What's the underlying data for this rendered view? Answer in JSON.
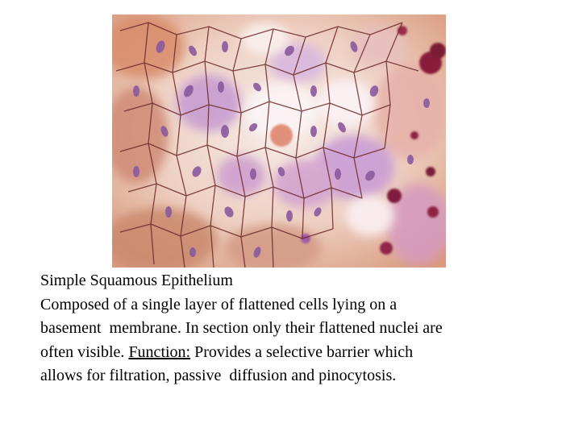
{
  "slide": {
    "title": "Simple Squamous Epithelium",
    "body_line_1": "Composed of a single layer of flattened cells lying on a",
    "body_line_2": "basement  membrane. In section only their flattened nuclei are",
    "body_line_3_pre": "often visible. ",
    "function_label": "Function:",
    "body_line_3_post": " Provides a selective barrier which",
    "body_line_4": "allows for filtration, passive  diffusion and pinocytosis."
  },
  "image": {
    "palette": {
      "background": "#efd2c2",
      "cell_border": "#6b2a2a",
      "nucleus": "#8a5a9e",
      "stain_purple": "#b07ac0",
      "stain_pink": "#d98a8a",
      "stain_dark": "#8a1f3a"
    }
  }
}
